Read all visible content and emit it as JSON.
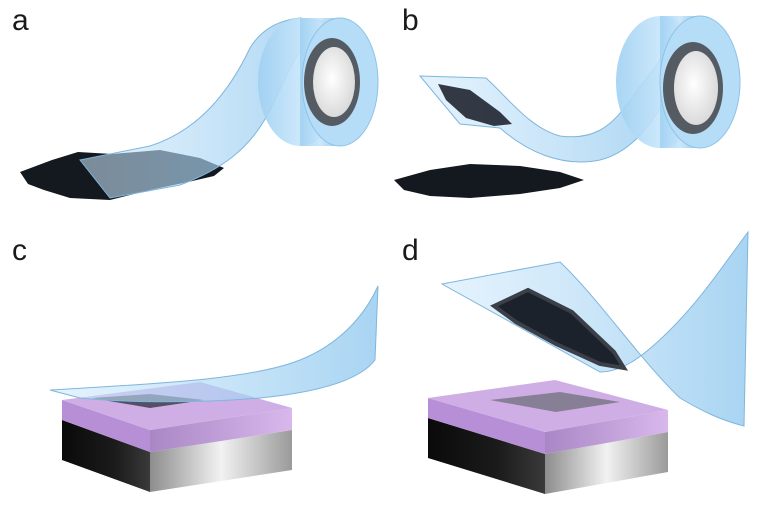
{
  "panels": [
    {
      "id": "a",
      "label": "a"
    },
    {
      "id": "b",
      "label": "b"
    },
    {
      "id": "c",
      "label": "c"
    },
    {
      "id": "d",
      "label": "d"
    }
  ],
  "colors": {
    "tape": "#a9d6f5",
    "tape_edge": "#7fb6dd",
    "flake": "#1d2330",
    "film": "#c19ad9",
    "substrate_dark": "#0c0c0c",
    "substrate_light": "#d9d9d9"
  }
}
